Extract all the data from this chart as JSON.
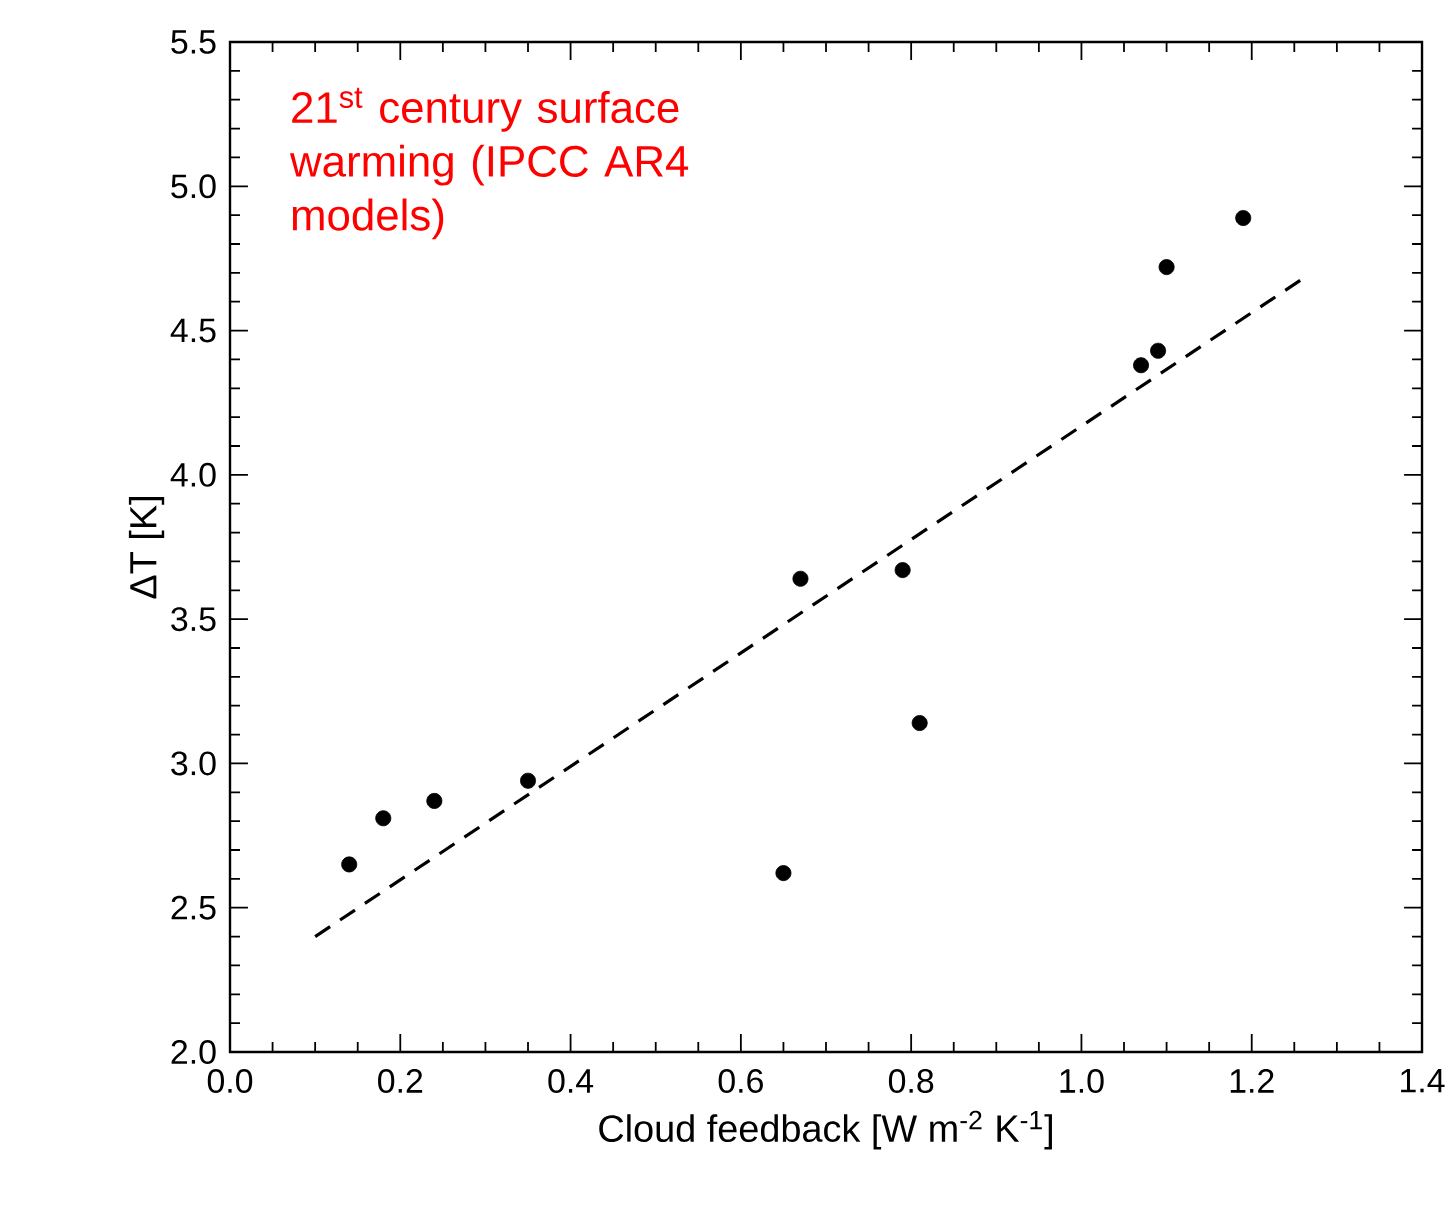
{
  "chart_data": {
    "type": "scatter",
    "title": "21$^{st}$ century surface warming (IPCC AR4 models)",
    "xlabel": "Cloud feedback [W m$^{-2}$ K$^{-1}$]",
    "ylabel": "ΔT [K]",
    "xlim": [
      0,
      1.4
    ],
    "ylim": [
      2.0,
      5.5
    ],
    "xticks": [
      {
        "value": 0,
        "label": "0.0"
      },
      0.2,
      0.4,
      0.6,
      0.8,
      {
        "value": 1,
        "label": "1.0"
      },
      1.2,
      1.4
    ],
    "yticks": [
      {
        "value": 2,
        "label": "2.0"
      },
      2.5,
      {
        "value": 3,
        "label": "3.0"
      },
      3.5,
      {
        "value": 4,
        "label": "4.0"
      },
      4.5,
      {
        "value": 5,
        "label": "5.0"
      },
      5.5
    ],
    "marker": "circle",
    "series": [
      {
        "color": "#000000",
        "x": [
          0.14,
          0.18,
          0.24,
          0.35,
          0.65,
          0.67,
          0.79,
          0.81,
          1.07,
          1.09,
          1.1,
          1.19
        ],
        "values": [
          2.65,
          2.81,
          2.87,
          2.94,
          2.62,
          3.64,
          3.67,
          3.14,
          4.38,
          4.43,
          4.72,
          4.89
        ]
      },
      {
        "type": "line",
        "color": "#000000",
        "line_style": "dashed",
        "marker": "none",
        "x": [
          0.1,
          1.26
        ],
        "values": [
          2.4,
          4.68
        ]
      }
    ]
  }
}
